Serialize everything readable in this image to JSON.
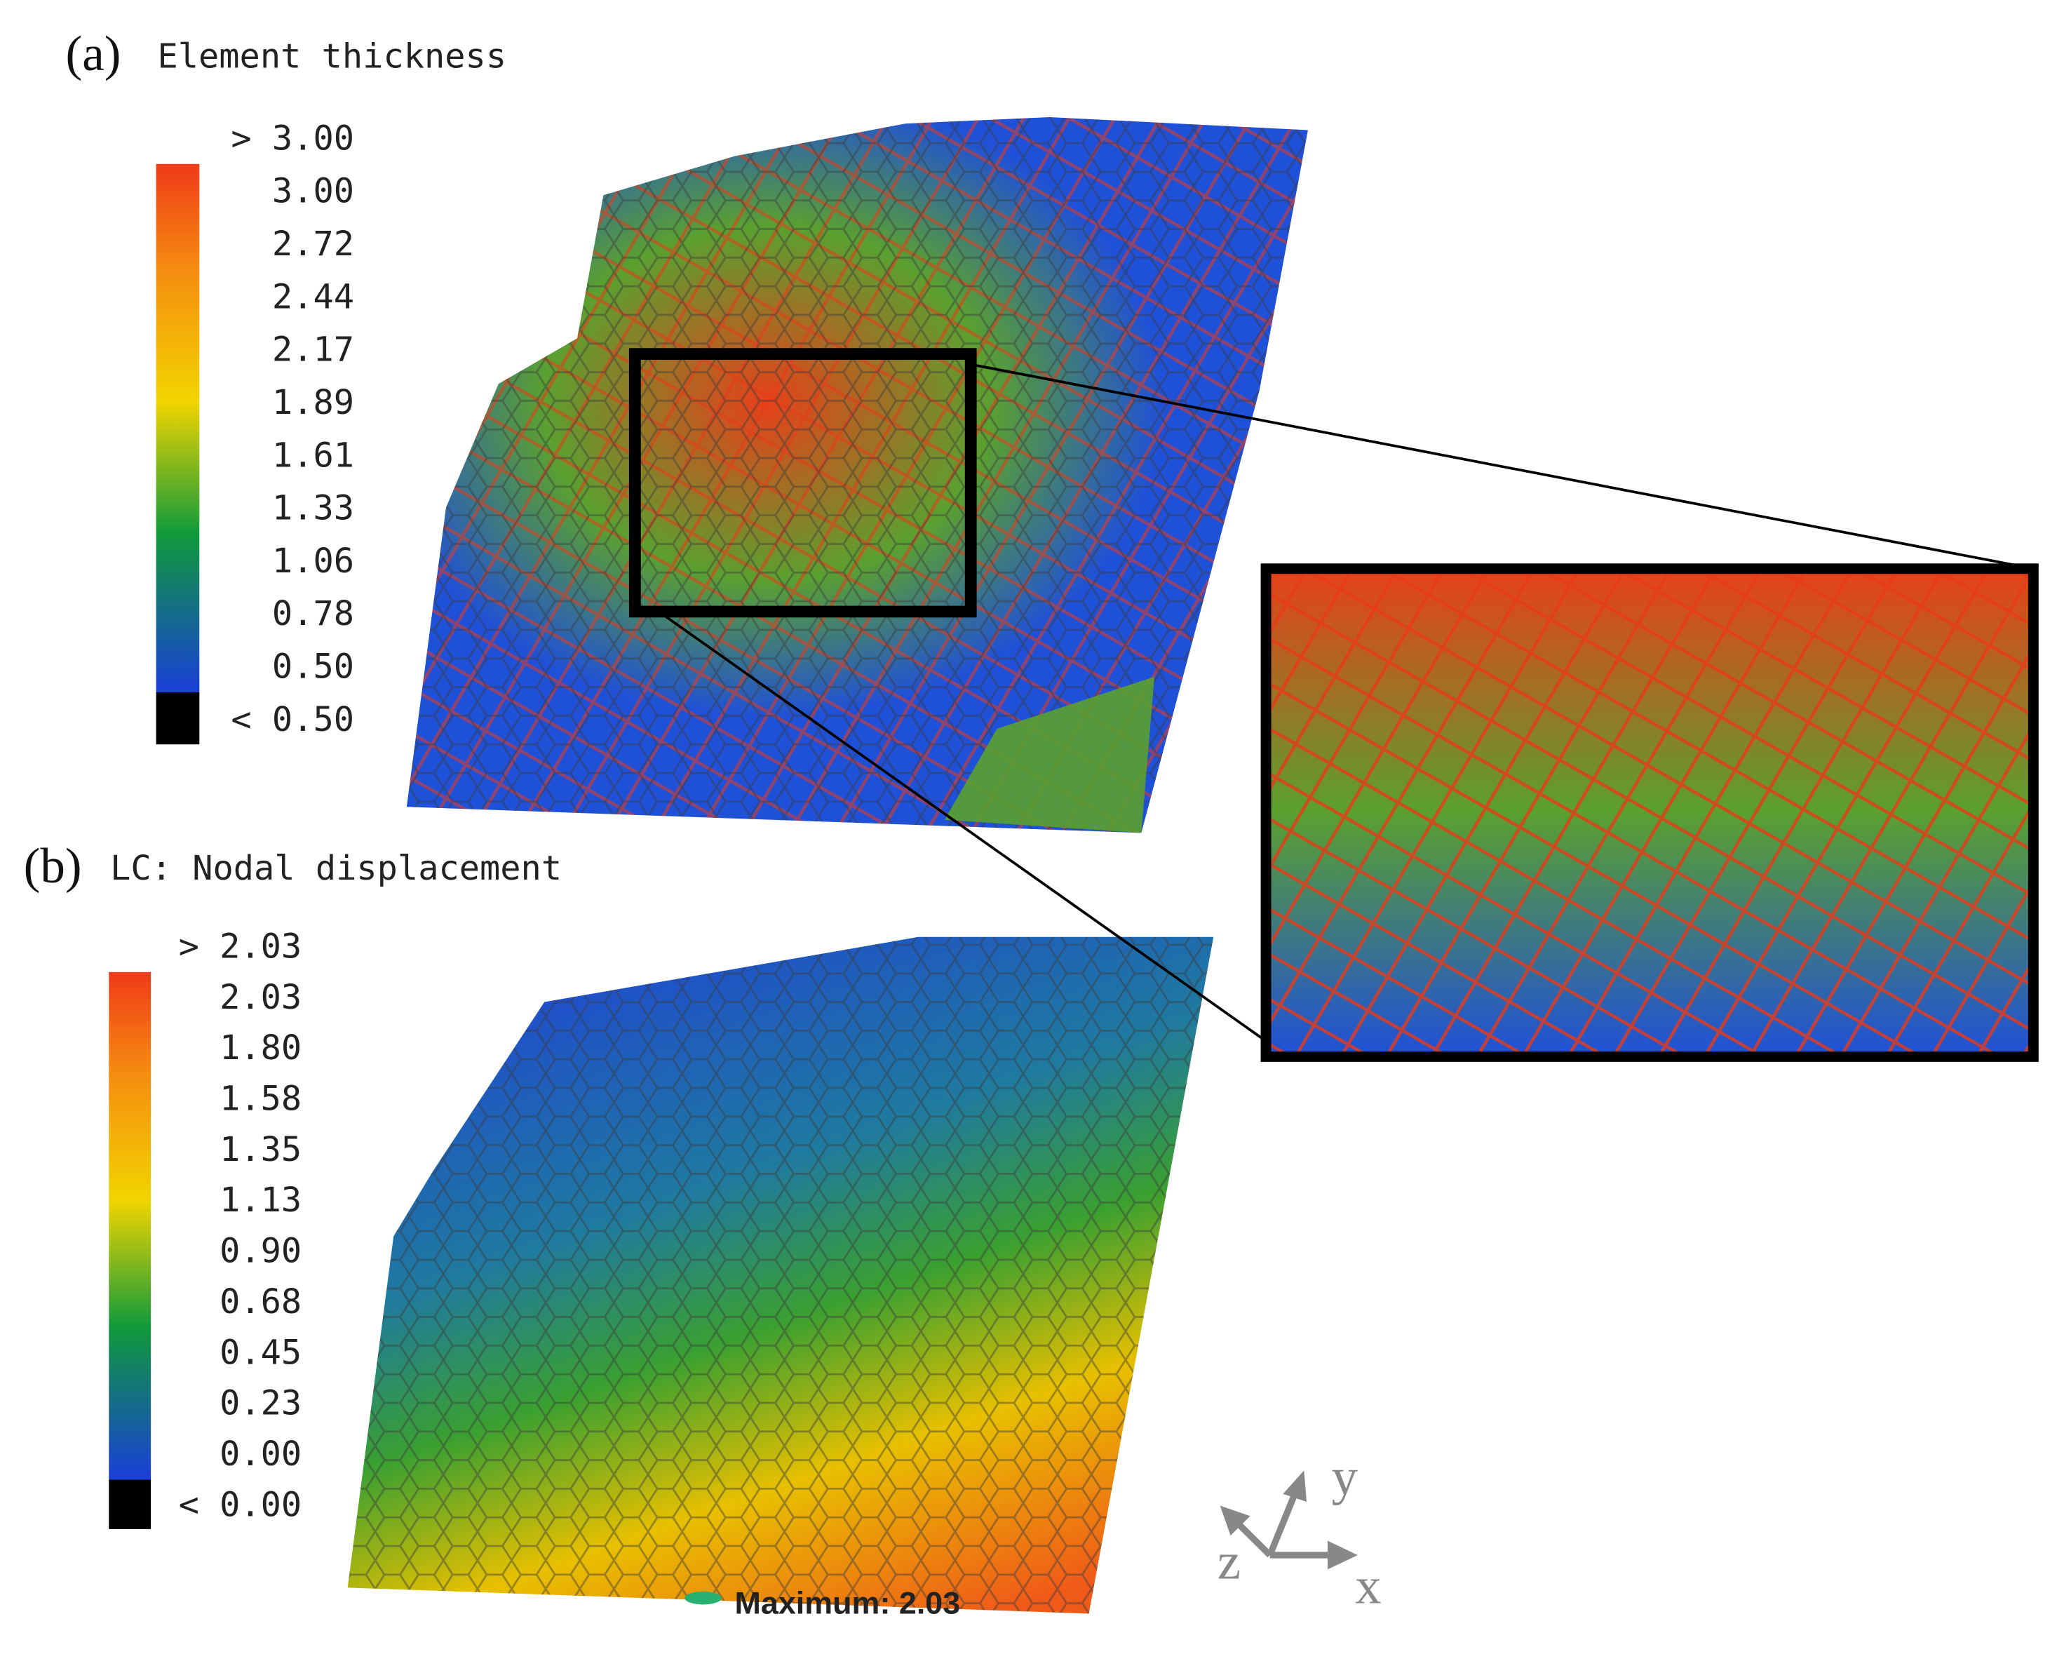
{
  "panels": [
    {
      "label": "(a)",
      "title": "Element thickness",
      "legend": [
        "> 3.00",
        "3.00",
        "2.72",
        "2.44",
        "2.17",
        "1.89",
        "1.61",
        "1.33",
        "1.06",
        "0.78",
        "0.50",
        "< 0.50"
      ]
    },
    {
      "label": "(b)",
      "title": "LC: Nodal displacement",
      "legend": [
        "> 2.03",
        "2.03",
        "1.80",
        "1.58",
        "1.35",
        "1.13",
        "0.90",
        "0.68",
        "0.45",
        "0.23",
        "0.00",
        "< 0.00"
      ],
      "annotation": "Maximum: 2.03"
    }
  ],
  "axes": {
    "x": "x",
    "y": "y",
    "z": "z"
  }
}
